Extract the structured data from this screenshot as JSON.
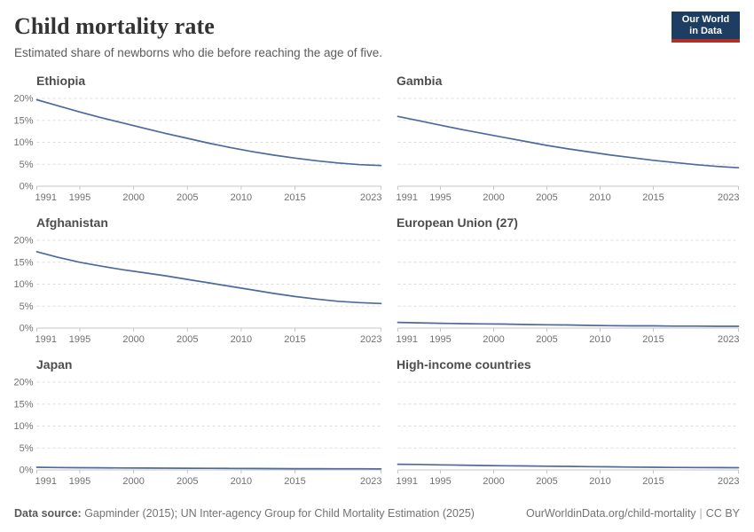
{
  "header": {
    "title": "Child mortality rate",
    "subtitle": "Estimated share of newborns who die before reaching the age of five.",
    "logo": {
      "line1": "Our World",
      "line2": "in Data"
    }
  },
  "chart_data": {
    "type": "line",
    "layout": "small-multiples-2x3",
    "grid": "dashed-horizontal",
    "legend_position": "none",
    "line_color": "#4c6a9c",
    "xlim": [
      1991,
      2023
    ],
    "ylim": [
      0,
      20
    ],
    "x_ticks": [
      1991,
      1995,
      2000,
      2005,
      2010,
      2015,
      2023
    ],
    "y_ticks": [
      0,
      5,
      10,
      15,
      20
    ],
    "y_tick_suffix": "%",
    "years": [
      1991,
      1993,
      1995,
      1997,
      1999,
      2001,
      2003,
      2005,
      2007,
      2009,
      2011,
      2013,
      2015,
      2017,
      2019,
      2021,
      2023
    ],
    "charts": [
      {
        "title": "Ethiopia",
        "values": [
          19.7,
          18.3,
          16.9,
          15.6,
          14.4,
          13.2,
          12.0,
          10.9,
          9.8,
          8.8,
          7.9,
          7.1,
          6.4,
          5.8,
          5.3,
          4.9,
          4.7
        ]
      },
      {
        "title": "Gambia",
        "values": [
          15.9,
          14.9,
          13.9,
          12.9,
          12.0,
          11.1,
          10.2,
          9.3,
          8.5,
          7.8,
          7.1,
          6.5,
          5.9,
          5.4,
          4.9,
          4.5,
          4.2
        ]
      },
      {
        "title": "Afghanistan",
        "values": [
          17.4,
          16.1,
          15.0,
          14.1,
          13.3,
          12.6,
          11.9,
          11.1,
          10.3,
          9.5,
          8.7,
          7.9,
          7.2,
          6.6,
          6.1,
          5.8,
          5.6
        ]
      },
      {
        "title": "European Union (27)",
        "values": [
          1.3,
          1.2,
          1.1,
          1.0,
          0.95,
          0.9,
          0.8,
          0.75,
          0.7,
          0.6,
          0.55,
          0.5,
          0.5,
          0.45,
          0.45,
          0.4,
          0.4
        ]
      },
      {
        "title": "Japan",
        "values": [
          0.6,
          0.55,
          0.5,
          0.48,
          0.45,
          0.43,
          0.4,
          0.38,
          0.36,
          0.34,
          0.32,
          0.3,
          0.29,
          0.28,
          0.27,
          0.26,
          0.25
        ]
      },
      {
        "title": "High-income countries",
        "values": [
          1.3,
          1.25,
          1.15,
          1.1,
          1.0,
          0.95,
          0.9,
          0.85,
          0.8,
          0.75,
          0.7,
          0.65,
          0.6,
          0.57,
          0.54,
          0.52,
          0.5
        ]
      }
    ]
  },
  "footer": {
    "data_source_label": "Data source:",
    "data_source_text": " Gapminder (2015); UN Inter-agency Group for Child Mortality Estimation (2025)",
    "url": "OurWorldinData.org/child-mortality",
    "separator": "|",
    "license": "CC BY"
  },
  "colors": {
    "line": "#4c6a9c",
    "logo_bg": "#1d3d63",
    "logo_accent": "#b03028",
    "gridline": "#dcdcdc",
    "axis": "#c6c6c6"
  }
}
